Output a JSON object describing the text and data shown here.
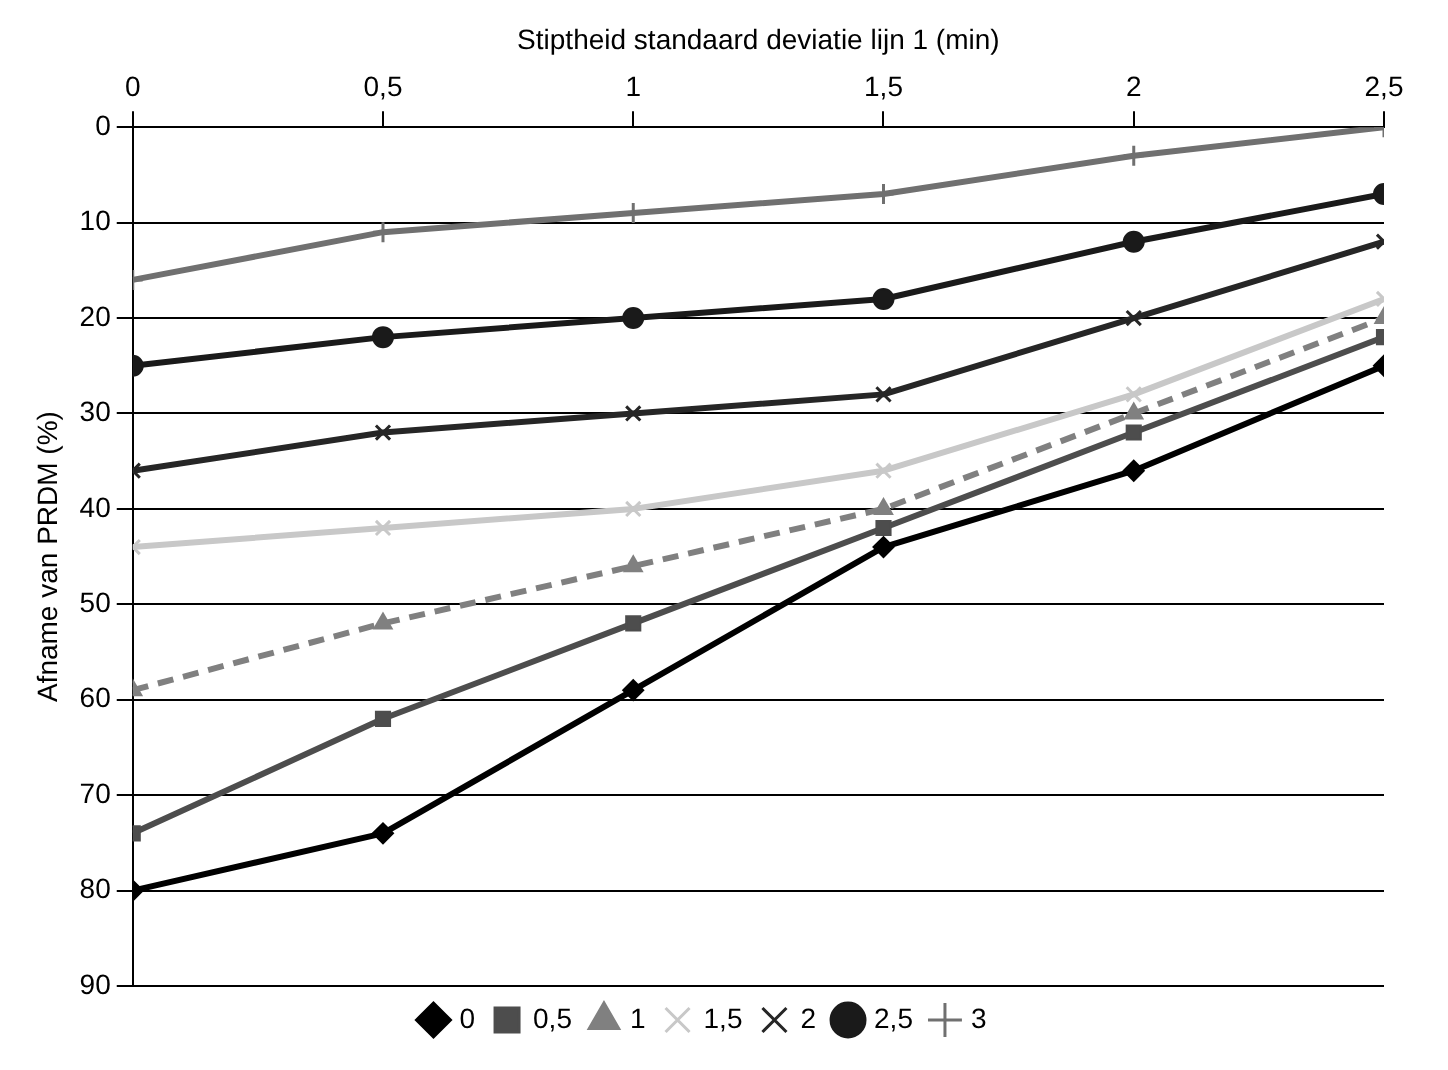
{
  "chart_data": {
    "type": "line",
    "xlabel": "Stiptheid standaard deviatie lijn 1 (min)",
    "ylabel": "Afname van PRDM (%)",
    "x": [
      0,
      0.5,
      1,
      1.5,
      2,
      2.5
    ],
    "xlim": [
      0,
      2.5
    ],
    "xticks": [
      0,
      {
        "value": 0.5,
        "label": "0,5"
      },
      1,
      {
        "value": 1.5,
        "label": "1,5"
      },
      2,
      {
        "value": 2.5,
        "label": "2,5"
      }
    ],
    "ylim": [
      90,
      0
    ],
    "yticks": [
      0,
      10,
      20,
      30,
      40,
      50,
      60,
      70,
      80,
      90
    ],
    "grid": "y",
    "legend": "bottom",
    "series": [
      {
        "name": "0",
        "color": "#000000",
        "marker": "diamond",
        "values": [
          80,
          74,
          59,
          44,
          36,
          25
        ]
      },
      {
        "name": "0,5",
        "color": "#4d4d4d",
        "marker": "square",
        "values": [
          74,
          62,
          52,
          42,
          32,
          22
        ]
      },
      {
        "name": "1",
        "color": "#808080",
        "marker": "triangle",
        "line_style": "dashed",
        "values": [
          59,
          52,
          46,
          40,
          30,
          20
        ]
      },
      {
        "name": "1,5",
        "color": "#c8c8c8",
        "marker": "cross",
        "values": [
          44,
          42,
          40,
          36,
          28,
          18
        ]
      },
      {
        "name": "2",
        "color": "#262626",
        "marker": "cross",
        "values": [
          36,
          32,
          30,
          28,
          20,
          12
        ]
      },
      {
        "name": "2,5",
        "color": "#1a1a1a",
        "marker": "circle",
        "values": [
          25,
          22,
          20,
          18,
          12,
          7
        ]
      },
      {
        "name": "3",
        "color": "#707070",
        "marker": "plus",
        "values": [
          16,
          11,
          9,
          7,
          3,
          0
        ]
      }
    ]
  }
}
